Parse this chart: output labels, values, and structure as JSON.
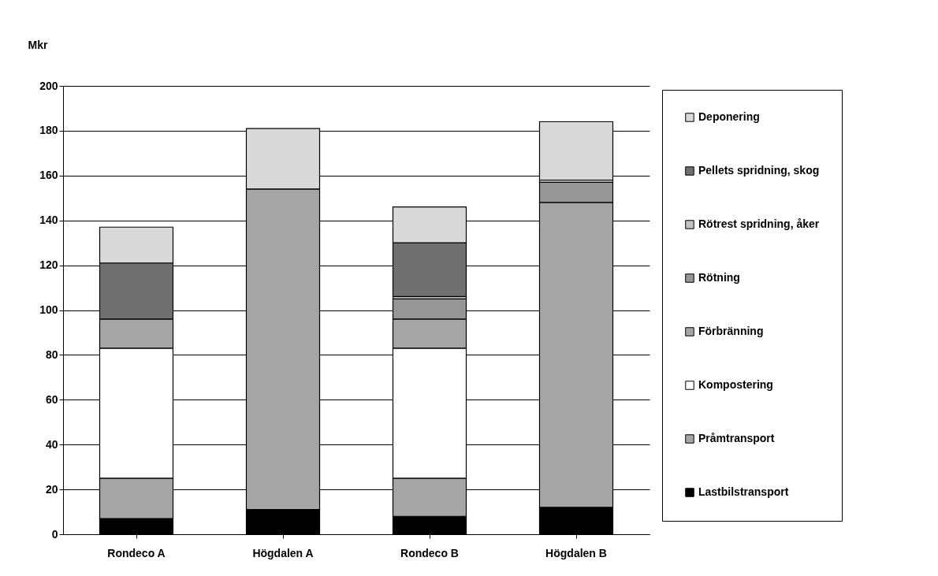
{
  "chart_data": {
    "type": "bar",
    "stacked": true,
    "ylabel": "Mkr",
    "categories": [
      "Rondeco A",
      "Högdalen A",
      "Rondeco B",
      "Högdalen B"
    ],
    "series": [
      {
        "name": "Lastbilstransport",
        "color": "#000000",
        "values": [
          7,
          11,
          8,
          12
        ]
      },
      {
        "name": "Pråmtransport",
        "color": "#a6a6a6",
        "values": [
          18,
          null,
          17,
          null
        ]
      },
      {
        "name": "Kompostering",
        "color": "#ffffff",
        "values": [
          58,
          null,
          58,
          null
        ]
      },
      {
        "name": "Förbränning",
        "color": "#a6a6a6",
        "values": [
          13,
          143,
          13,
          136
        ]
      },
      {
        "name": "Rötning",
        "color": "#969696",
        "values": [
          null,
          null,
          9,
          9
        ]
      },
      {
        "name": "Rötrest spridning, åker",
        "color": "#c0c0c0",
        "values": [
          null,
          null,
          1,
          1
        ]
      },
      {
        "name": "Pellets spridning, skog",
        "color": "#707070",
        "values": [
          25,
          null,
          24,
          null
        ]
      },
      {
        "name": "Deponering",
        "color": "#d9d9d9",
        "values": [
          16,
          27,
          16,
          26
        ]
      }
    ],
    "ylim": [
      0,
      200
    ],
    "yticks": [
      0,
      20,
      40,
      60,
      80,
      100,
      120,
      140,
      160,
      180,
      200
    ],
    "grid": "y",
    "legend": "right"
  }
}
